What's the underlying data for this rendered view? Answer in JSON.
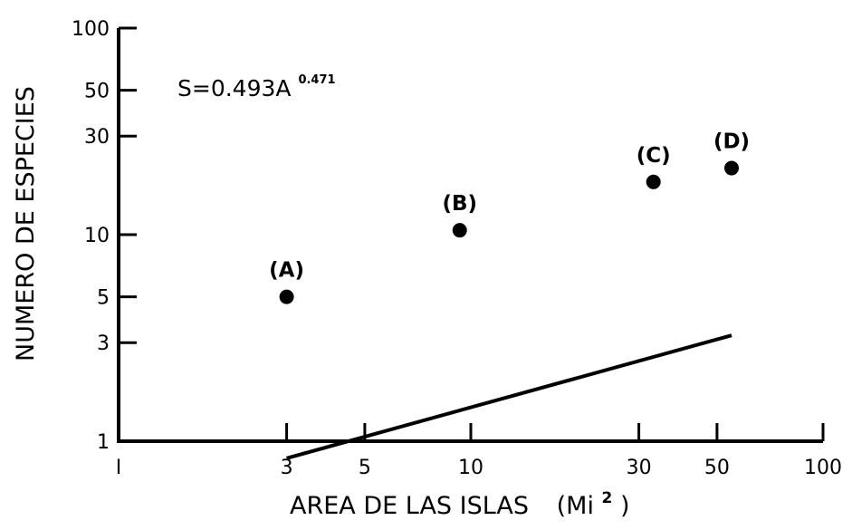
{
  "chart_data": {
    "type": "scatter",
    "xlabel": "AREA DE LAS ISLAS",
    "xlabel_unit": "(Mi",
    "xlabel_unit_sup": "2",
    "xlabel_unit_close": ")",
    "ylabel": "NUMERO DE ESPECIES",
    "x_scale": "log",
    "y_scale": "log",
    "xlim": [
      1,
      100
    ],
    "ylim": [
      1,
      100
    ],
    "x_ticks": [
      {
        "value": 1,
        "label": "I"
      },
      {
        "value": 3,
        "label": "3"
      },
      {
        "value": 5,
        "label": "5"
      },
      {
        "value": 10,
        "label": "10"
      },
      {
        "value": 30,
        "label": "30"
      },
      {
        "value": 50,
        "label": "50"
      },
      {
        "value": 100,
        "label": "100"
      }
    ],
    "y_ticks": [
      {
        "value": 1,
        "label": "1"
      },
      {
        "value": 3,
        "label": "3"
      },
      {
        "value": 5,
        "label": "5"
      },
      {
        "value": 10,
        "label": "10"
      },
      {
        "value": 30,
        "label": "30"
      },
      {
        "value": 50,
        "label": "50"
      },
      {
        "value": 100,
        "label": "100"
      }
    ],
    "points": [
      {
        "label": "(A)",
        "x": 3,
        "y": 5
      },
      {
        "label": "(B)",
        "x": 9.3,
        "y": 10.5
      },
      {
        "label": "(C)",
        "x": 33,
        "y": 18
      },
      {
        "label": "(D)",
        "x": 55,
        "y": 21
      }
    ],
    "fit_line": {
      "equation_prefix": "S=0.493A",
      "equation_exponent": "0.471",
      "coefficient": 0.493,
      "exponent": 0.471,
      "x_start": 3,
      "x_end": 55
    },
    "grid": false,
    "legend": "none"
  }
}
